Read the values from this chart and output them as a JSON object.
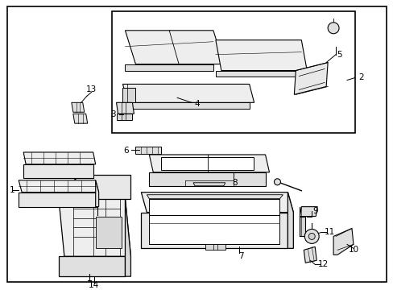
{
  "bg_color": "#ffffff",
  "line_color": "#000000",
  "gray_fill": "#f0f0f0",
  "dark_fill": "#d8d8d8",
  "font_size": 7.5
}
